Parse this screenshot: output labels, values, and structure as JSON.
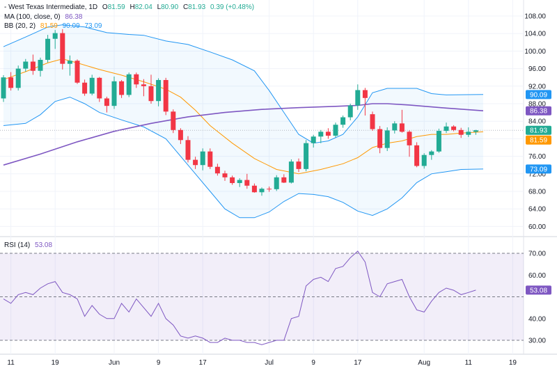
{
  "header": {
    "symbol": "- West Texas Intermediate, 1D",
    "o_label": "O",
    "o_val": "81.59",
    "h_label": "H",
    "h_val": "82.04",
    "l_label": "L",
    "l_val": "80.90",
    "c_label": "C",
    "c_val": "81.93",
    "change": "0.39 (+0.48%)",
    "ma_label": "MA (100, close, 0)",
    "ma_val": "86.38",
    "bb_label": "BB (20, 2)",
    "bb_mid": "81.59",
    "bb_upper": "90.09",
    "bb_lower": "73.09",
    "rsi_label": "RSI (14)",
    "rsi_val": "53.08"
  },
  "colors": {
    "up": "#22ab94",
    "down": "#f23645",
    "ma": "#7e57c2",
    "bb_mid": "#ff9800",
    "bb_band": "#2196f3",
    "rsi": "#7e57c2",
    "green_text": "#22ab94"
  },
  "chart_data": [
    {
      "type": "candlestick",
      "title": "West Texas Intermediate, 1D",
      "y_ticks": [
        "60.00",
        "64.00",
        "68.00",
        "72.00",
        "76.00",
        "80.00",
        "84.00",
        "88.00",
        "92.00",
        "96.00",
        "100.00",
        "104.00",
        "108.00"
      ],
      "ylim": [
        57.5,
        109.5
      ],
      "x_ticks": [
        {
          "i": 1,
          "label": "11"
        },
        {
          "i": 7,
          "label": "19"
        },
        {
          "i": 15,
          "label": "Jun"
        },
        {
          "i": 21,
          "label": "9"
        },
        {
          "i": 27,
          "label": "17"
        },
        {
          "i": 36,
          "label": "Jul"
        },
        {
          "i": 42,
          "label": "9"
        },
        {
          "i": 48,
          "label": "17"
        },
        {
          "i": 57,
          "label": "Aug"
        },
        {
          "i": 63,
          "label": "11"
        },
        {
          "i": 69,
          "label": "19"
        }
      ],
      "price_labels": {
        "upper": "90.09",
        "ma": "86.38",
        "close": "81.93",
        "mid": "81.59",
        "lower": "73.09"
      },
      "candles": [
        [
          89.2,
          94.5,
          88.4,
          94.0
        ],
        [
          94.0,
          95.2,
          91.0,
          91.6
        ],
        [
          91.6,
          96.7,
          91.0,
          96.0
        ],
        [
          96.0,
          98.2,
          95.3,
          97.6
        ],
        [
          97.6,
          99.2,
          94.6,
          95.5
        ],
        [
          95.5,
          98.5,
          94.2,
          98.0
        ],
        [
          98.0,
          103.7,
          97.4,
          102.8
        ],
        [
          102.8,
          104.8,
          100.5,
          104.1
        ],
        [
          104.1,
          105.0,
          95.8,
          97.1
        ],
        [
          97.1,
          99.0,
          94.4,
          97.8
        ],
        [
          97.8,
          98.1,
          92.5,
          92.8
        ],
        [
          92.8,
          93.5,
          89.8,
          90.3
        ],
        [
          90.3,
          94.6,
          89.9,
          93.9
        ],
        [
          93.9,
          94.1,
          88.4,
          89.2
        ],
        [
          89.2,
          89.6,
          86.0,
          87.5
        ],
        [
          87.5,
          94.2,
          86.8,
          93.1
        ],
        [
          93.1,
          93.4,
          89.3,
          90.0
        ],
        [
          90.0,
          95.1,
          89.5,
          94.7
        ],
        [
          94.7,
          95.1,
          91.6,
          92.4
        ],
        [
          92.4,
          93.6,
          89.7,
          92.0
        ],
        [
          92.0,
          94.6,
          88.0,
          88.6
        ],
        [
          88.6,
          93.8,
          87.4,
          93.4
        ],
        [
          93.4,
          93.9,
          85.4,
          86.2
        ],
        [
          86.2,
          86.7,
          81.3,
          82.0
        ],
        [
          82.0,
          82.4,
          78.8,
          79.7
        ],
        [
          79.7,
          80.6,
          74.6,
          75.2
        ],
        [
          75.2,
          75.9,
          73.1,
          74.0
        ],
        [
          74.0,
          77.8,
          72.8,
          77.1
        ],
        [
          77.1,
          77.8,
          73.1,
          73.6
        ],
        [
          73.6,
          74.3,
          71.6,
          72.1
        ],
        [
          72.1,
          72.7,
          70.4,
          71.2
        ],
        [
          71.2,
          71.6,
          69.5,
          69.9
        ],
        [
          69.9,
          71.0,
          69.0,
          70.6
        ],
        [
          70.6,
          72.0,
          68.6,
          69.3
        ],
        [
          69.3,
          69.8,
          67.7,
          67.8
        ],
        [
          67.8,
          68.9,
          67.0,
          68.6
        ],
        [
          68.6,
          69.1,
          67.9,
          68.5
        ],
        [
          68.5,
          71.7,
          68.1,
          71.2
        ],
        [
          71.2,
          71.9,
          69.9,
          70.0
        ],
        [
          70.0,
          75.3,
          69.8,
          74.8
        ],
        [
          74.8,
          75.5,
          72.4,
          73.1
        ],
        [
          73.1,
          79.7,
          72.6,
          79.0
        ],
        [
          79.0,
          80.9,
          78.0,
          80.5
        ],
        [
          80.5,
          82.0,
          79.0,
          81.6
        ],
        [
          81.6,
          82.4,
          80.0,
          80.7
        ],
        [
          80.7,
          83.7,
          80.3,
          83.2
        ],
        [
          83.2,
          85.3,
          82.5,
          84.9
        ],
        [
          84.9,
          88.0,
          84.2,
          87.6
        ],
        [
          87.6,
          92.4,
          86.6,
          91.1
        ],
        [
          91.1,
          91.6,
          85.3,
          89.3
        ],
        [
          85.6,
          86.2,
          81.8,
          82.2
        ],
        [
          82.2,
          82.9,
          76.7,
          77.9
        ],
        [
          77.9,
          82.6,
          77.2,
          81.9
        ],
        [
          81.9,
          84.0,
          81.2,
          83.5
        ],
        [
          83.5,
          86.6,
          81.4,
          81.6
        ],
        [
          81.6,
          81.9,
          75.9,
          78.5
        ],
        [
          78.5,
          79.2,
          73.5,
          73.8
        ],
        [
          73.8,
          76.7,
          73.2,
          76.3
        ],
        [
          76.3,
          77.4,
          75.2,
          77.1
        ],
        [
          77.1,
          82.3,
          76.8,
          81.8
        ],
        [
          81.8,
          83.7,
          81.3,
          82.8
        ],
        [
          82.8,
          83.1,
          81.7,
          82.0
        ],
        [
          82.0,
          82.5,
          80.2,
          80.9
        ],
        [
          80.9,
          82.6,
          80.4,
          81.6
        ],
        [
          81.59,
          82.04,
          80.9,
          81.93
        ]
      ],
      "ma": [
        [
          0,
          74.0
        ],
        [
          5,
          76.5
        ],
        [
          10,
          79.3
        ],
        [
          15,
          81.7
        ],
        [
          20,
          83.5
        ],
        [
          25,
          85.0
        ],
        [
          30,
          86.0
        ],
        [
          35,
          86.7
        ],
        [
          40,
          87.1
        ],
        [
          45,
          87.4
        ],
        [
          48,
          87.6
        ],
        [
          50,
          88.0
        ],
        [
          52,
          88.0
        ],
        [
          55,
          87.7
        ],
        [
          60,
          87.0
        ],
        [
          65,
          86.38
        ]
      ],
      "bb_mid": [
        [
          0,
          93.5
        ],
        [
          3,
          95.3
        ],
        [
          6,
          97.3
        ],
        [
          8,
          98.2
        ],
        [
          10,
          97.3
        ],
        [
          13,
          95.8
        ],
        [
          16,
          94.5
        ],
        [
          19,
          93.0
        ],
        [
          22,
          91.3
        ],
        [
          24,
          89.5
        ],
        [
          26,
          86.5
        ],
        [
          28,
          83.0
        ],
        [
          31,
          79.0
        ],
        [
          34,
          75.5
        ],
        [
          37,
          73.0
        ],
        [
          40,
          72.0
        ],
        [
          43,
          73.0
        ],
        [
          46,
          74.3
        ],
        [
          48,
          75.7
        ],
        [
          50,
          78.0
        ],
        [
          52,
          79.0
        ],
        [
          54,
          79.5
        ],
        [
          56,
          80.5
        ],
        [
          58,
          81.0
        ],
        [
          60,
          81.0
        ],
        [
          62,
          81.3
        ],
        [
          65,
          81.59
        ]
      ],
      "bb_upper": [
        [
          0,
          101.0
        ],
        [
          3,
          103.2
        ],
        [
          6,
          105.5
        ],
        [
          8,
          106.0
        ],
        [
          11,
          105.5
        ],
        [
          14,
          104.2
        ],
        [
          17,
          103.8
        ],
        [
          19,
          103.6
        ],
        [
          22,
          102.3
        ],
        [
          25,
          101.5
        ],
        [
          28,
          99.8
        ],
        [
          31,
          98.0
        ],
        [
          34,
          95.5
        ],
        [
          36,
          91.0
        ],
        [
          38,
          86.0
        ],
        [
          40,
          81.0
        ],
        [
          42,
          79.0
        ],
        [
          44,
          79.5
        ],
        [
          46,
          81.0
        ],
        [
          48,
          85.0
        ],
        [
          50,
          90.5
        ],
        [
          52,
          91.5
        ],
        [
          56,
          91.5
        ],
        [
          58,
          90.3
        ],
        [
          60,
          90.0
        ],
        [
          65,
          90.09
        ]
      ],
      "bb_lower": [
        [
          0,
          83.0
        ],
        [
          3,
          83.5
        ],
        [
          5,
          85.5
        ],
        [
          7,
          88.5
        ],
        [
          9,
          89.5
        ],
        [
          11,
          88.0
        ],
        [
          13,
          86.0
        ],
        [
          16,
          84.3
        ],
        [
          19,
          82.7
        ],
        [
          22,
          80.0
        ],
        [
          25,
          74.0
        ],
        [
          28,
          68.0
        ],
        [
          30,
          64.0
        ],
        [
          32,
          62.0
        ],
        [
          34,
          62.0
        ],
        [
          36,
          63.3
        ],
        [
          38,
          65.7
        ],
        [
          40,
          67.5
        ],
        [
          42,
          67.3
        ],
        [
          44,
          66.8
        ],
        [
          46,
          65.5
        ],
        [
          48,
          63.5
        ],
        [
          50,
          62.5
        ],
        [
          52,
          64.0
        ],
        [
          54,
          66.5
        ],
        [
          56,
          70.0
        ],
        [
          58,
          72.0
        ],
        [
          60,
          72.5
        ],
        [
          62,
          73.0
        ],
        [
          65,
          73.09
        ]
      ]
    },
    {
      "type": "line",
      "title": "RSI (14)",
      "y_ticks": [
        "30.00",
        "40.00",
        "50.00",
        "60.00",
        "70.00"
      ],
      "ylim": [
        25,
        75
      ],
      "band": [
        30,
        70
      ],
      "midline": 50,
      "current_label": "53.08",
      "values": [
        [
          0,
          49
        ],
        [
          1,
          47
        ],
        [
          2,
          51
        ],
        [
          3,
          52
        ],
        [
          4,
          51
        ],
        [
          5,
          54
        ],
        [
          6,
          56
        ],
        [
          7,
          57
        ],
        [
          8,
          52
        ],
        [
          9,
          51
        ],
        [
          10,
          49
        ],
        [
          11,
          41
        ],
        [
          12,
          46
        ],
        [
          13,
          42
        ],
        [
          14,
          40
        ],
        [
          15,
          40
        ],
        [
          16,
          47
        ],
        [
          17,
          43
        ],
        [
          18,
          49
        ],
        [
          19,
          45
        ],
        [
          20,
          41
        ],
        [
          21,
          47
        ],
        [
          22,
          40
        ],
        [
          23,
          37
        ],
        [
          24,
          32
        ],
        [
          25,
          31
        ],
        [
          26,
          32
        ],
        [
          27,
          31
        ],
        [
          28,
          29
        ],
        [
          29,
          29
        ],
        [
          30,
          31
        ],
        [
          31,
          30
        ],
        [
          32,
          30
        ],
        [
          33,
          29
        ],
        [
          34,
          29
        ],
        [
          35,
          28
        ],
        [
          36,
          29
        ],
        [
          37,
          30
        ],
        [
          38,
          30
        ],
        [
          39,
          40
        ],
        [
          40,
          41
        ],
        [
          41,
          55
        ],
        [
          42,
          58
        ],
        [
          43,
          59
        ],
        [
          44,
          57
        ],
        [
          45,
          63
        ],
        [
          46,
          64
        ],
        [
          47,
          68
        ],
        [
          48,
          71
        ],
        [
          49,
          66
        ],
        [
          50,
          52
        ],
        [
          51,
          50
        ],
        [
          52,
          56
        ],
        [
          53,
          57
        ],
        [
          54,
          58
        ],
        [
          55,
          50
        ],
        [
          56,
          44
        ],
        [
          57,
          43
        ],
        [
          58,
          48
        ],
        [
          59,
          52
        ],
        [
          60,
          54
        ],
        [
          61,
          53
        ],
        [
          62,
          51
        ],
        [
          63,
          52
        ],
        [
          64,
          53.08
        ]
      ]
    }
  ]
}
